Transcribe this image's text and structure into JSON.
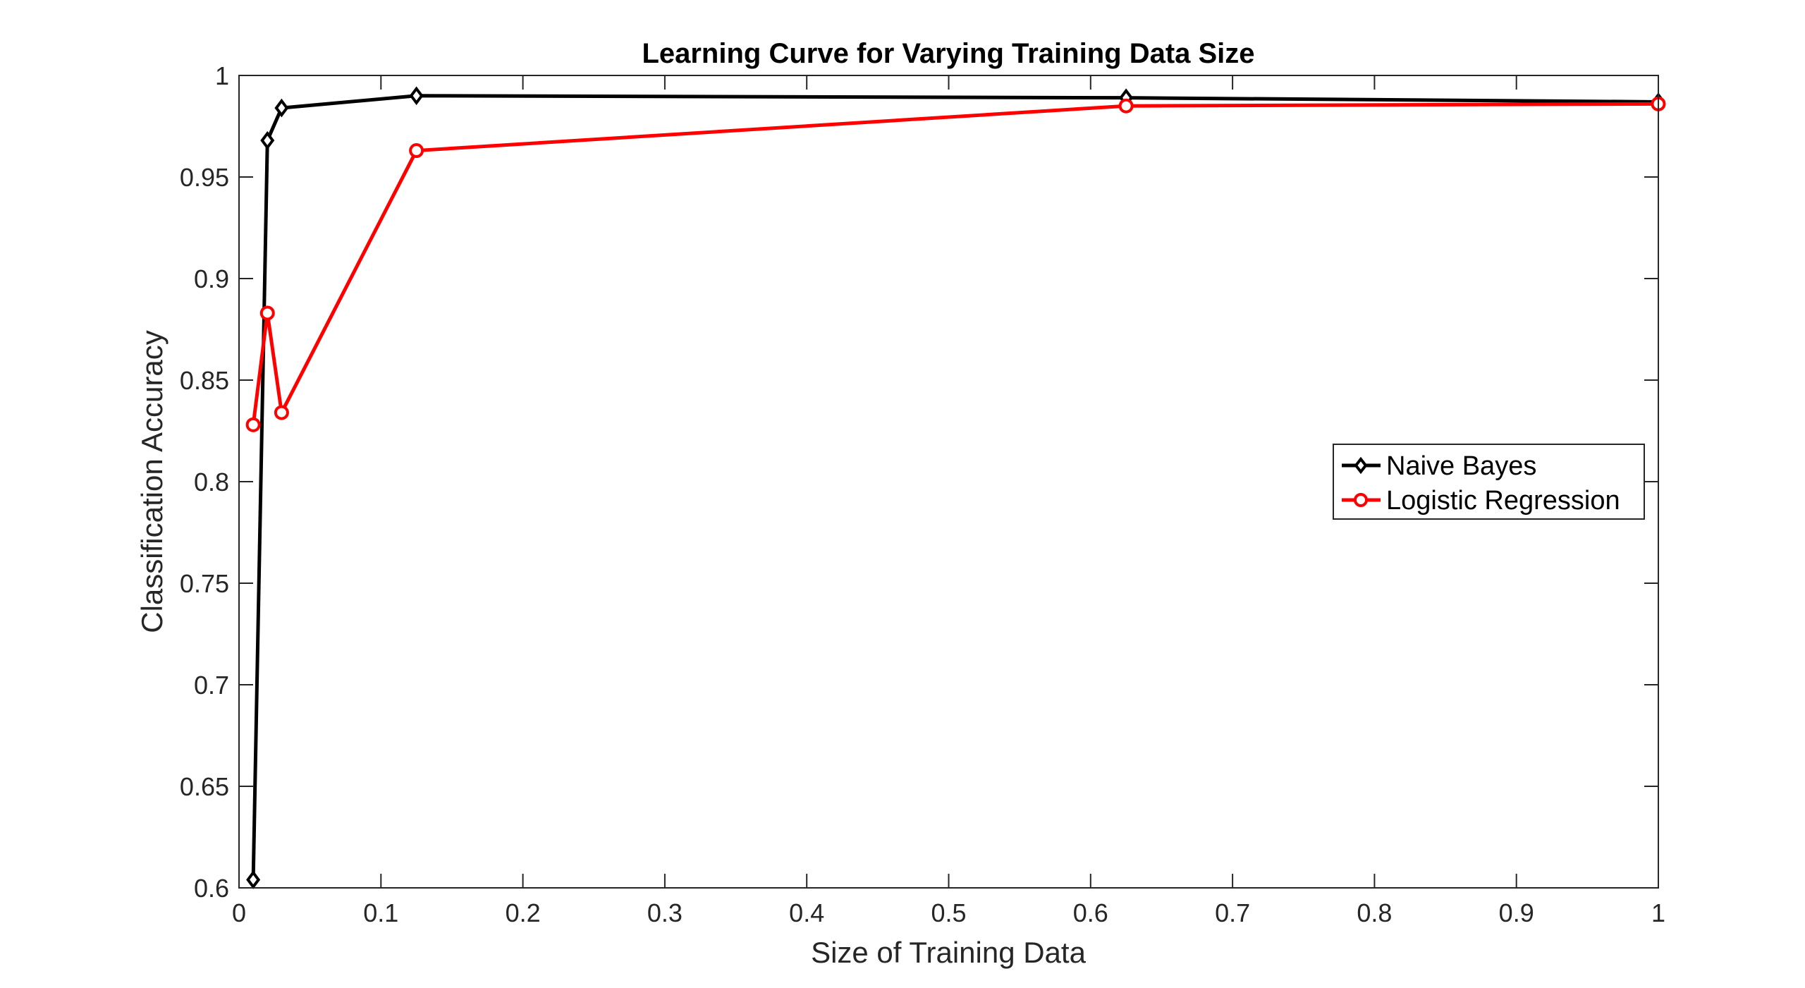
{
  "chart_data": {
    "type": "line",
    "title": "Learning Curve for Varying Training Data Size",
    "xlabel": "Size of Training Data",
    "ylabel": "Classification Accuracy",
    "xlim": [
      0,
      1
    ],
    "ylim": [
      0.6,
      1
    ],
    "xticks": [
      0,
      0.1,
      0.2,
      0.3,
      0.4,
      0.5,
      0.6,
      0.7,
      0.8,
      0.9,
      1
    ],
    "xtick_labels": [
      "0",
      "0.1",
      "0.2",
      "0.3",
      "0.4",
      "0.5",
      "0.6",
      "0.7",
      "0.8",
      "0.9",
      "1"
    ],
    "yticks": [
      0.6,
      0.65,
      0.7,
      0.75,
      0.8,
      0.85,
      0.9,
      0.95,
      1
    ],
    "ytick_labels": [
      "0.6",
      "0.65",
      "0.7",
      "0.75",
      "0.8",
      "0.85",
      "0.9",
      "0.95",
      "1"
    ],
    "grid": false,
    "legend_position": "right",
    "series": [
      {
        "name": "Naive Bayes",
        "color": "#000000",
        "marker": "diamond",
        "x": [
          0.01,
          0.02,
          0.03,
          0.125,
          0.625,
          1.0
        ],
        "y": [
          0.604,
          0.968,
          0.984,
          0.99,
          0.989,
          0.987
        ]
      },
      {
        "name": "Logistic Regression",
        "color": "#ff0000",
        "marker": "circle",
        "x": [
          0.01,
          0.02,
          0.03,
          0.125,
          0.625,
          1.0
        ],
        "y": [
          0.828,
          0.883,
          0.834,
          0.963,
          0.985,
          0.986
        ]
      }
    ]
  }
}
